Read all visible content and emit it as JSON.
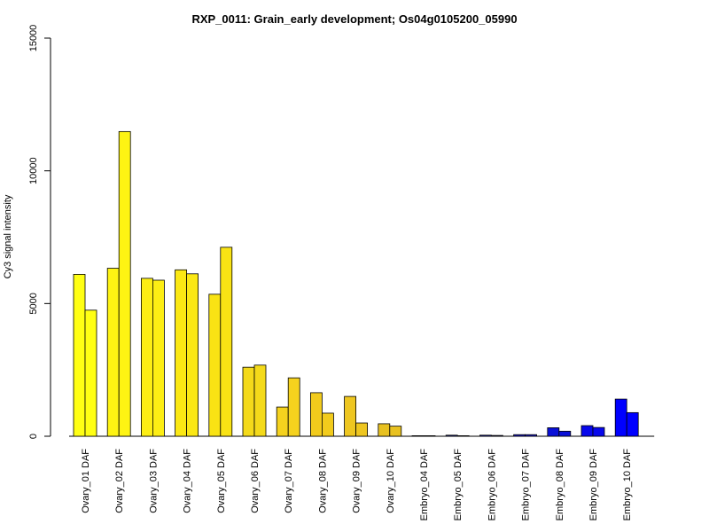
{
  "chart_data": {
    "type": "bar",
    "title": "RXP_0011: Grain_early development; Os04g0105200_05990",
    "xlabel": "",
    "ylabel": "Cy3 signal intensity",
    "ylim": [
      0,
      15000
    ],
    "yticks": [
      0,
      5000,
      10000,
      15000
    ],
    "grid": false,
    "categories": [
      "Ovary_01 DAF",
      "Ovary_02 DAF",
      "Ovary_03 DAF",
      "Ovary_04 DAF",
      "Ovary_05 DAF",
      "Ovary_06 DAF",
      "Ovary_07 DAF",
      "Ovary_08 DAF",
      "Ovary_09 DAF",
      "Ovary_10 DAF",
      "Embryo_04 DAF",
      "Embryo_05 DAF",
      "Embryo_06 DAF",
      "Embryo_07 DAF",
      "Embryo_08 DAF",
      "Embryo_09 DAF",
      "Embryo_10 DAF"
    ],
    "series": [
      {
        "values": [
          6100,
          6330,
          5950,
          6270,
          5350,
          2600,
          1100,
          1640,
          1500,
          470,
          20,
          40,
          40,
          60,
          320,
          400,
          1400
        ]
      },
      {
        "values": [
          4750,
          11480,
          5880,
          6120,
          7120,
          2680,
          2200,
          870,
          500,
          380,
          20,
          20,
          30,
          60,
          190,
          330,
          890
        ]
      }
    ],
    "bar_colors": [
      "#ffff14",
      "#fef413",
      "#fdee14",
      "#fbe814",
      "#f9e314",
      "#f4da1a",
      "#f5d21e",
      "#f2cb1c",
      "#eec620",
      "#e8c120",
      "#1a2a66",
      "#1a268a",
      "#161ca9",
      "#1a1cc4",
      "#0a10d8",
      "#0808ec",
      "#0000ff"
    ]
  }
}
